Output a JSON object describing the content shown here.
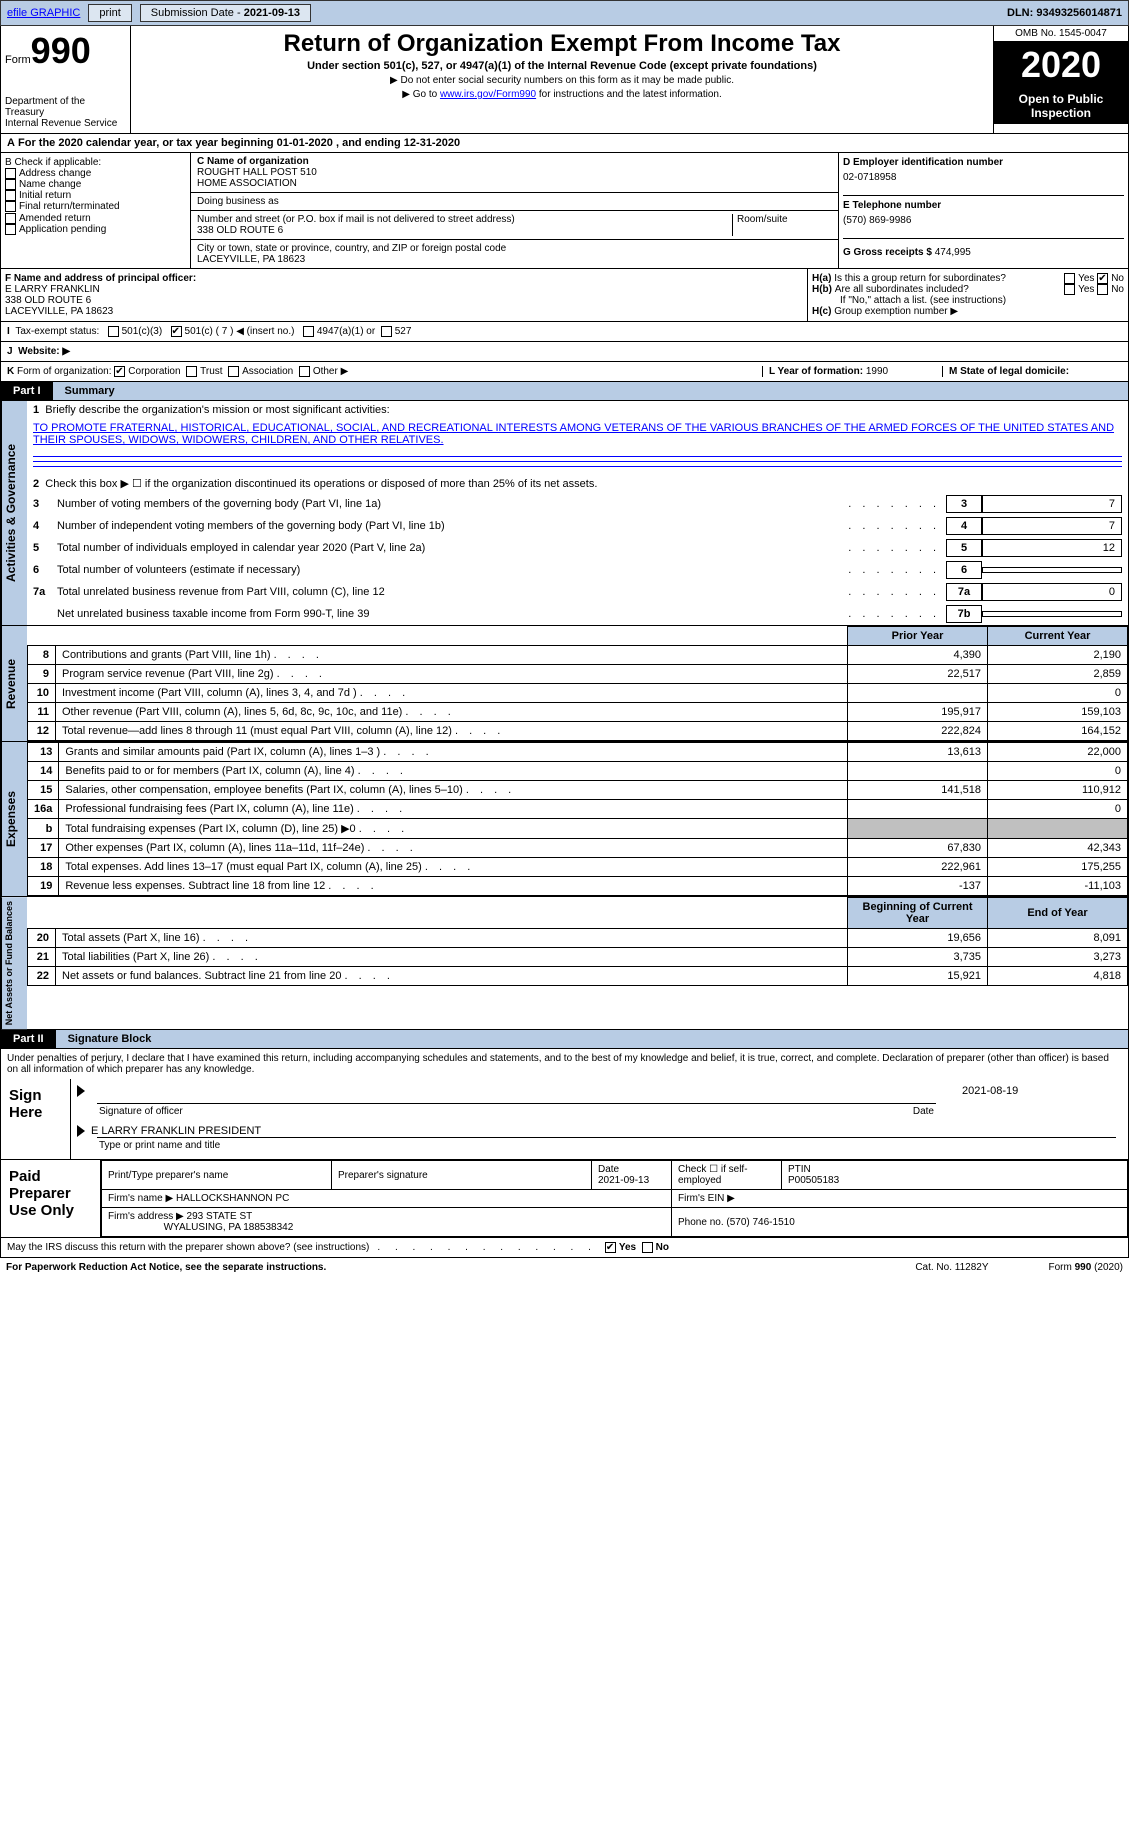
{
  "topbar": {
    "efile": "efile GRAPHIC",
    "print": "print",
    "subdate_label": "Submission Date - ",
    "subdate": "2021-09-13",
    "dln_label": "DLN: ",
    "dln": "93493256014871"
  },
  "header": {
    "form_label": "Form",
    "form_no": "990",
    "dept1": "Department of the Treasury",
    "dept2": "Internal Revenue Service",
    "title": "Return of Organization Exempt From Income Tax",
    "sub": "Under section 501(c), 527, or 4947(a)(1) of the Internal Revenue Code (except private foundations)",
    "note1": "▶ Do not enter social security numbers on this form as it may be made public.",
    "note2_pre": "▶ Go to ",
    "note2_link": "www.irs.gov/Form990",
    "note2_post": " for instructions and the latest information.",
    "omb": "OMB No. 1545-0047",
    "year": "2020",
    "open": "Open to Public Inspection"
  },
  "A": {
    "text_pre": "For the 2020 calendar year, or tax year beginning ",
    "begin": "01-01-2020",
    "mid": " , and ending ",
    "end": "12-31-2020"
  },
  "B": {
    "label": "B Check if applicable:",
    "items": [
      "Address change",
      "Name change",
      "Initial return",
      "Final return/terminated",
      "Amended return",
      "Application pending"
    ]
  },
  "C": {
    "name_label": "C Name of organization",
    "name1": "ROUGHT HALL POST 510",
    "name2": "HOME ASSOCIATION",
    "dba_label": "Doing business as",
    "addr_label": "Number and street (or P.O. box if mail is not delivered to street address)",
    "room_label": "Room/suite",
    "addr": "338 OLD ROUTE 6",
    "city_label": "City or town, state or province, country, and ZIP or foreign postal code",
    "city": "LACEYVILLE, PA  18623"
  },
  "D": {
    "label": "D Employer identification number",
    "ein": "02-0718958"
  },
  "E": {
    "label": "E Telephone number",
    "phone": "(570) 869-9986"
  },
  "G": {
    "label": "G Gross receipts $ ",
    "amt": "474,995"
  },
  "F": {
    "label": "F Name and address of principal officer:",
    "name": "E LARRY FRANKLIN",
    "addr1": "338 OLD ROUTE 6",
    "addr2": "LACEYVILLE, PA  18623"
  },
  "H": {
    "a": "Is this a group return for subordinates?",
    "b": "Are all subordinates included?",
    "b_note": "If \"No,\" attach a list. (see instructions)",
    "c": "Group exemption number ▶",
    "yes": "Yes",
    "no": "No"
  },
  "I": {
    "label": "Tax-exempt status:",
    "o1": "501(c)(3)",
    "o2": "501(c) ( 7 ) ◀ (insert no.)",
    "o3": "4947(a)(1) or",
    "o4": "527"
  },
  "J": {
    "label": "Website: ▶"
  },
  "K": {
    "label": "Form of organization:",
    "o1": "Corporation",
    "o2": "Trust",
    "o3": "Association",
    "o4": "Other ▶"
  },
  "L": {
    "label": "L Year of formation: ",
    "val": "1990"
  },
  "M": {
    "label": "M State of legal domicile:"
  },
  "part1": {
    "label": "Part I",
    "title": "Summary"
  },
  "summary": {
    "q1": "Briefly describe the organization's mission or most significant activities:",
    "mission": "TO PROMOTE FRATERNAL, HISTORICAL, EDUCATIONAL, SOCIAL, AND RECREATIONAL INTERESTS AMONG VETERANS OF THE VARIOUS BRANCHES OF THE ARMED FORCES OF THE UNITED STATES AND THEIR SPOUSES, WIDOWS, WIDOWERS, CHILDREN, AND OTHER RELATIVES.",
    "q2": "Check this box ▶ ☐ if the organization discontinued its operations or disposed of more than 25% of its net assets.",
    "lines": [
      {
        "n": "3",
        "t": "Number of voting members of the governing body (Part VI, line 1a)",
        "c": "3",
        "v": "7"
      },
      {
        "n": "4",
        "t": "Number of independent voting members of the governing body (Part VI, line 1b)",
        "c": "4",
        "v": "7"
      },
      {
        "n": "5",
        "t": "Total number of individuals employed in calendar year 2020 (Part V, line 2a)",
        "c": "5",
        "v": "12"
      },
      {
        "n": "6",
        "t": "Total number of volunteers (estimate if necessary)",
        "c": "6",
        "v": ""
      },
      {
        "n": "7a",
        "t": "Total unrelated business revenue from Part VIII, column (C), line 12",
        "c": "7a",
        "v": "0"
      },
      {
        "n": "",
        "t": "Net unrelated business taxable income from Form 990-T, line 39",
        "c": "7b",
        "v": ""
      }
    ]
  },
  "vtabs": {
    "gov": "Activities & Governance",
    "rev": "Revenue",
    "exp": "Expenses",
    "net": "Net Assets or Fund Balances"
  },
  "fincols": {
    "prior": "Prior Year",
    "current": "Current Year",
    "beg": "Beginning of Current Year",
    "end": "End of Year"
  },
  "revenue": [
    {
      "n": "8",
      "t": "Contributions and grants (Part VIII, line 1h)",
      "p": "4,390",
      "c": "2,190"
    },
    {
      "n": "9",
      "t": "Program service revenue (Part VIII, line 2g)",
      "p": "22,517",
      "c": "2,859"
    },
    {
      "n": "10",
      "t": "Investment income (Part VIII, column (A), lines 3, 4, and 7d )",
      "p": "",
      "c": "0"
    },
    {
      "n": "11",
      "t": "Other revenue (Part VIII, column (A), lines 5, 6d, 8c, 9c, 10c, and 11e)",
      "p": "195,917",
      "c": "159,103"
    },
    {
      "n": "12",
      "t": "Total revenue—add lines 8 through 11 (must equal Part VIII, column (A), line 12)",
      "p": "222,824",
      "c": "164,152"
    }
  ],
  "expenses": [
    {
      "n": "13",
      "t": "Grants and similar amounts paid (Part IX, column (A), lines 1–3 )",
      "p": "13,613",
      "c": "22,000"
    },
    {
      "n": "14",
      "t": "Benefits paid to or for members (Part IX, column (A), line 4)",
      "p": "",
      "c": "0"
    },
    {
      "n": "15",
      "t": "Salaries, other compensation, employee benefits (Part IX, column (A), lines 5–10)",
      "p": "141,518",
      "c": "110,912"
    },
    {
      "n": "16a",
      "t": "Professional fundraising fees (Part IX, column (A), line 11e)",
      "p": "",
      "c": "0"
    },
    {
      "n": "b",
      "t": "Total fundraising expenses (Part IX, column (D), line 25) ▶0",
      "p": "SHADE",
      "c": "SHADE"
    },
    {
      "n": "17",
      "t": "Other expenses (Part IX, column (A), lines 11a–11d, 11f–24e)",
      "p": "67,830",
      "c": "42,343"
    },
    {
      "n": "18",
      "t": "Total expenses. Add lines 13–17 (must equal Part IX, column (A), line 25)",
      "p": "222,961",
      "c": "175,255"
    },
    {
      "n": "19",
      "t": "Revenue less expenses. Subtract line 18 from line 12",
      "p": "-137",
      "c": "-11,103"
    }
  ],
  "netassets": [
    {
      "n": "20",
      "t": "Total assets (Part X, line 16)",
      "p": "19,656",
      "c": "8,091"
    },
    {
      "n": "21",
      "t": "Total liabilities (Part X, line 26)",
      "p": "3,735",
      "c": "3,273"
    },
    {
      "n": "22",
      "t": "Net assets or fund balances. Subtract line 21 from line 20",
      "p": "15,921",
      "c": "4,818"
    }
  ],
  "part2": {
    "label": "Part II",
    "title": "Signature Block"
  },
  "sig": {
    "decl": "Under penalties of perjury, I declare that I have examined this return, including accompanying schedules and statements, and to the best of my knowledge and belief, it is true, correct, and complete. Declaration of preparer (other than officer) is based on all information of which preparer has any knowledge.",
    "sign_here": "Sign Here",
    "sig_officer": "Signature of officer",
    "date": "Date",
    "sig_date": "2021-08-19",
    "name_title": "E LARRY FRANKLIN  PRESIDENT",
    "type_name": "Type or print name and title"
  },
  "prep": {
    "label": "Paid Preparer Use Only",
    "h1": "Print/Type preparer's name",
    "h2": "Preparer's signature",
    "h3": "Date",
    "date": "2021-09-13",
    "h4": "Check ☐ if self-employed",
    "h5": "PTIN",
    "ptin": "P00505183",
    "firm_name_l": "Firm's name   ▶",
    "firm_name": "HALLOCKSHANNON PC",
    "firm_ein_l": "Firm's EIN ▶",
    "firm_addr_l": "Firm's address ▶",
    "firm_addr1": "293 STATE ST",
    "firm_addr2": "WYALUSING, PA  188538342",
    "phone_l": "Phone no. ",
    "phone": "(570) 746-1510"
  },
  "footer": {
    "discuss": "May the IRS discuss this return with the preparer shown above? (see instructions)",
    "yes": "Yes",
    "no": "No",
    "paperwork": "For Paperwork Reduction Act Notice, see the separate instructions.",
    "cat": "Cat. No. 11282Y",
    "formref": "Form 990 (2020)"
  }
}
